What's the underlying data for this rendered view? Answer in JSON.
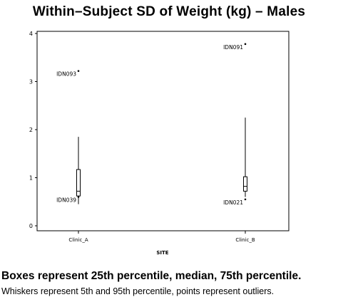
{
  "chart_data": {
    "type": "box",
    "title": "Within–Subject SD of Weight (kg) – Males",
    "xlabel": "SITE",
    "ylabel": "",
    "ylim": [
      0,
      4
    ],
    "yticks": [
      0,
      1,
      2,
      3,
      4
    ],
    "categories": [
      "Clinic_A",
      "Clinic_B"
    ],
    "boxes": [
      {
        "category": "Clinic_A",
        "whisker_low": 0.45,
        "q1": 0.62,
        "median": 0.72,
        "q3": 1.17,
        "whisker_high": 1.85,
        "outliers": [
          {
            "value": 3.22,
            "label": "IDN093"
          },
          {
            "value": 0.6,
            "label": "IDN039"
          }
        ]
      },
      {
        "category": "Clinic_B",
        "whisker_low": 0.6,
        "q1": 0.72,
        "median": 0.82,
        "q3": 1.02,
        "whisker_high": 2.25,
        "outliers": [
          {
            "value": 3.78,
            "label": "IDN091"
          },
          {
            "value": 0.55,
            "label": "IDN021"
          }
        ]
      }
    ],
    "grid": false,
    "legend": "none"
  },
  "notes": {
    "line1": "Boxes represent 25th percentile, median, 75th percentile.",
    "line2": "Whiskers represent 5th and 95th percentile, points represent outliers."
  }
}
